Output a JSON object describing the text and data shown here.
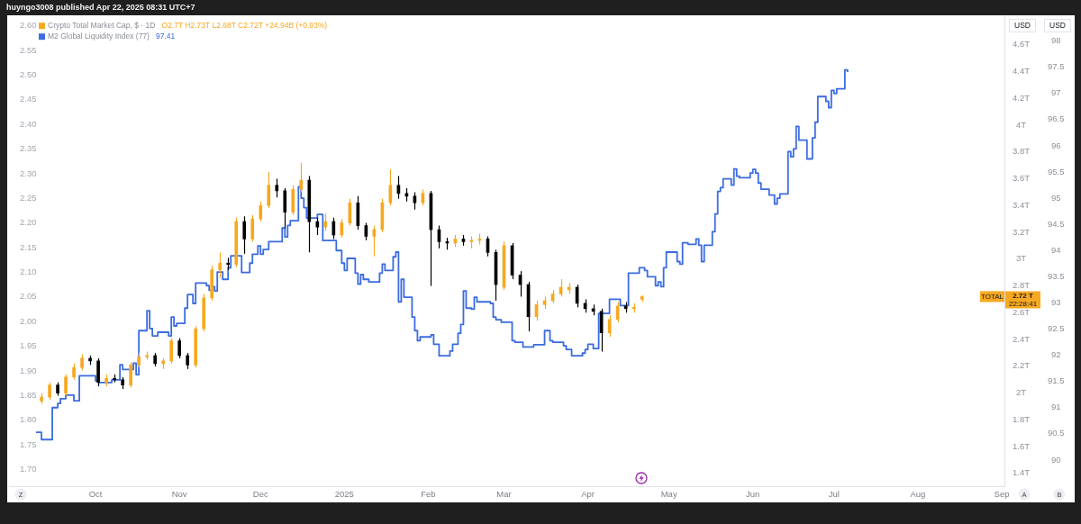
{
  "chart_data": {
    "type": "candlestick",
    "annotations": [
      "huyngo3008 published Apr 22, 2025 08:31 UTC+7",
      "O2.7T H2.73T L2.68T C2.72T +24.94B (+0.93%)",
      "97.41",
      "TOTAL",
      "2.72 T",
      "22:28:41",
      "Z",
      "A",
      "B"
    ],
    "legend": "top left",
    "series": [
      {
        "type": "candlestick",
        "name": "Crypto Total Market Cap, $ · 1D",
        "axis": "y2",
        "x": [
          "2024-09-11",
          "2024-09-14",
          "2024-09-17",
          "2024-09-20",
          "2024-09-23",
          "2024-09-26",
          "2024-09-29",
          "2024-10-02",
          "2024-10-05",
          "2024-10-08",
          "2024-10-11",
          "2024-10-14",
          "2024-10-17",
          "2024-10-20",
          "2024-10-23",
          "2024-10-26",
          "2024-10-29",
          "2024-11-01",
          "2024-11-04",
          "2024-11-07",
          "2024-11-10",
          "2024-11-13",
          "2024-11-16",
          "2024-11-19",
          "2024-11-22",
          "2024-11-25",
          "2024-11-28",
          "2024-12-01",
          "2024-12-04",
          "2024-12-07",
          "2024-12-10",
          "2024-12-13",
          "2024-12-16",
          "2024-12-19",
          "2024-12-22",
          "2024-12-25",
          "2024-12-28",
          "2024-12-31",
          "2025-01-03",
          "2025-01-06",
          "2025-01-09",
          "2025-01-12",
          "2025-01-15",
          "2025-01-18",
          "2025-01-21",
          "2025-01-24",
          "2025-01-27",
          "2025-01-30",
          "2025-02-02",
          "2025-02-05",
          "2025-02-08",
          "2025-02-11",
          "2025-02-14",
          "2025-02-17",
          "2025-02-20",
          "2025-02-23",
          "2025-02-26",
          "2025-03-01",
          "2025-03-04",
          "2025-03-07",
          "2025-03-10",
          "2025-03-13",
          "2025-03-16",
          "2025-03-19",
          "2025-03-22",
          "2025-03-25",
          "2025-03-28",
          "2025-03-31",
          "2025-04-03",
          "2025-04-06",
          "2025-04-09",
          "2025-04-12",
          "2025-04-15",
          "2025-04-18",
          "2025-04-21"
        ],
        "ohlc": [
          [
            1.94,
            2.0,
            1.92,
            1.97
          ],
          [
            1.97,
            2.08,
            1.95,
            2.06
          ],
          [
            2.06,
            2.08,
            1.98,
            2.0
          ],
          [
            2.0,
            2.14,
            1.98,
            2.12
          ],
          [
            2.12,
            2.22,
            2.1,
            2.19
          ],
          [
            2.19,
            2.29,
            2.17,
            2.26
          ],
          [
            2.26,
            2.28,
            2.21,
            2.24
          ],
          [
            2.24,
            2.26,
            2.05,
            2.08
          ],
          [
            2.08,
            2.14,
            2.05,
            2.11
          ],
          [
            2.11,
            2.14,
            2.08,
            2.1
          ],
          [
            2.1,
            2.12,
            2.03,
            2.06
          ],
          [
            2.06,
            2.23,
            2.04,
            2.21
          ],
          [
            2.21,
            2.3,
            2.19,
            2.27
          ],
          [
            2.27,
            2.31,
            2.25,
            2.28
          ],
          [
            2.28,
            2.3,
            2.2,
            2.22
          ],
          [
            2.22,
            2.26,
            2.18,
            2.24
          ],
          [
            2.24,
            2.41,
            2.22,
            2.39
          ],
          [
            2.39,
            2.41,
            2.26,
            2.28
          ],
          [
            2.28,
            2.3,
            2.18,
            2.21
          ],
          [
            2.21,
            2.5,
            2.19,
            2.48
          ],
          [
            2.48,
            2.74,
            2.46,
            2.71
          ],
          [
            2.71,
            2.95,
            2.69,
            2.92
          ],
          [
            2.92,
            3.05,
            2.86,
            2.97
          ],
          [
            2.97,
            3.01,
            2.92,
            2.96
          ],
          [
            2.96,
            3.31,
            2.94,
            3.28
          ],
          [
            3.28,
            3.32,
            3.04,
            3.15
          ],
          [
            3.15,
            3.33,
            3.13,
            3.3
          ],
          [
            3.3,
            3.43,
            3.28,
            3.4
          ],
          [
            3.4,
            3.65,
            3.38,
            3.55
          ],
          [
            3.55,
            3.6,
            3.46,
            3.51
          ],
          [
            3.51,
            3.53,
            3.23,
            3.35
          ],
          [
            3.35,
            3.55,
            3.33,
            3.52
          ],
          [
            3.52,
            3.72,
            3.5,
            3.59
          ],
          [
            3.59,
            3.62,
            3.05,
            3.28
          ],
          [
            3.28,
            3.31,
            3.18,
            3.24
          ],
          [
            3.24,
            3.34,
            3.21,
            3.28
          ],
          [
            3.28,
            3.31,
            3.15,
            3.18
          ],
          [
            3.18,
            3.3,
            3.16,
            3.27
          ],
          [
            3.27,
            3.45,
            3.25,
            3.42
          ],
          [
            3.42,
            3.47,
            3.22,
            3.25
          ],
          [
            3.25,
            3.27,
            3.14,
            3.17
          ],
          [
            3.17,
            3.25,
            3.02,
            3.22
          ],
          [
            3.22,
            3.45,
            3.2,
            3.42
          ],
          [
            3.42,
            3.67,
            3.4,
            3.55
          ],
          [
            3.55,
            3.62,
            3.45,
            3.49
          ],
          [
            3.49,
            3.53,
            3.43,
            3.47
          ],
          [
            3.47,
            3.5,
            3.37,
            3.42
          ],
          [
            3.42,
            3.52,
            3.4,
            3.49
          ],
          [
            3.49,
            3.51,
            2.8,
            3.22
          ],
          [
            3.22,
            3.25,
            3.08,
            3.13
          ],
          [
            3.13,
            3.16,
            3.07,
            3.12
          ],
          [
            3.12,
            3.18,
            3.09,
            3.15
          ],
          [
            3.15,
            3.18,
            3.1,
            3.13
          ],
          [
            3.13,
            3.17,
            3.08,
            3.14
          ],
          [
            3.14,
            3.19,
            3.11,
            3.15
          ],
          [
            3.15,
            3.17,
            3.02,
            3.05
          ],
          [
            3.05,
            3.07,
            2.69,
            2.81
          ],
          [
            2.79,
            3.13,
            2.77,
            3.1
          ],
          [
            3.1,
            3.12,
            2.85,
            2.88
          ],
          [
            2.88,
            2.91,
            2.72,
            2.81
          ],
          [
            2.81,
            2.83,
            2.46,
            2.57
          ],
          [
            2.57,
            2.69,
            2.54,
            2.66
          ],
          [
            2.66,
            2.72,
            2.63,
            2.69
          ],
          [
            2.69,
            2.77,
            2.67,
            2.74
          ],
          [
            2.74,
            2.85,
            2.72,
            2.79
          ],
          [
            2.77,
            2.82,
            2.74,
            2.79
          ],
          [
            2.79,
            2.81,
            2.64,
            2.67
          ],
          [
            2.67,
            2.7,
            2.6,
            2.63
          ],
          [
            2.63,
            2.66,
            2.58,
            2.61
          ],
          [
            2.61,
            2.63,
            2.31,
            2.45
          ],
          [
            2.45,
            2.58,
            2.42,
            2.55
          ],
          [
            2.55,
            2.68,
            2.53,
            2.65
          ],
          [
            2.65,
            2.68,
            2.6,
            2.63
          ],
          [
            2.63,
            2.67,
            2.6,
            2.64
          ],
          [
            2.7,
            2.73,
            2.68,
            2.72
          ]
        ],
        "colors": [
          "#f6a821",
          "#f6a821",
          "#000000",
          "#f6a821",
          "#f6a821",
          "#f6a821",
          "#000000",
          "#000000",
          "#f6a821",
          "#000000",
          "#000000",
          "#f6a821",
          "#f6a821",
          "#f6a821",
          "#000000",
          "#f6a821",
          "#f6a821",
          "#000000",
          "#000000",
          "#f6a821",
          "#f6a821",
          "#f6a821",
          "#f6a821",
          "#000000",
          "#f6a821",
          "#000000",
          "#f6a821",
          "#f6a821",
          "#f6a821",
          "#000000",
          "#000000",
          "#f6a821",
          "#f6a821",
          "#000000",
          "#000000",
          "#f6a821",
          "#000000",
          "#f6a821",
          "#f6a821",
          "#000000",
          "#000000",
          "#f6a821",
          "#f6a821",
          "#f6a821",
          "#000000",
          "#000000",
          "#000000",
          "#f6a821",
          "#000000",
          "#000000",
          "#000000",
          "#f6a821",
          "#000000",
          "#f6a821",
          "#f6a821",
          "#000000",
          "#000000",
          "#f6a821",
          "#000000",
          "#000000",
          "#000000",
          "#f6a821",
          "#f6a821",
          "#f6a821",
          "#f6a821",
          "#f6a821",
          "#000000",
          "#000000",
          "#000000",
          "#000000",
          "#f6a821",
          "#f6a821",
          "#000000",
          "#f6a821",
          "#f6a821"
        ]
      },
      {
        "type": "step",
        "name": "M2 Global Liquidity Index (77)",
        "axis": "y3",
        "color": "#3a6be0",
        "x": [
          "2024-09-09",
          "2024-09-11",
          "2024-09-15",
          "2024-09-17",
          "2024-09-18",
          "2024-09-20",
          "2024-09-23",
          "2024-09-25",
          "2024-10-01",
          "2024-10-02",
          "2024-10-07",
          "2024-10-10",
          "2024-10-11",
          "2024-10-15",
          "2024-10-16",
          "2024-10-17",
          "2024-10-20",
          "2024-10-21",
          "2024-10-22",
          "2024-10-24",
          "2024-10-28",
          "2024-10-29",
          "2024-10-30",
          "2024-10-31",
          "2024-11-03",
          "2024-11-04",
          "2024-11-06",
          "2024-11-07",
          "2024-11-11",
          "2024-11-12",
          "2024-11-13",
          "2024-11-14",
          "2024-11-15",
          "2024-11-17",
          "2024-11-19",
          "2024-11-20",
          "2024-11-24",
          "2024-11-27",
          "2024-11-28",
          "2024-11-30",
          "2024-12-01",
          "2024-12-02",
          "2024-12-04",
          "2024-12-09",
          "2024-12-10",
          "2024-12-11",
          "2024-12-12",
          "2024-12-15",
          "2024-12-16",
          "2024-12-17",
          "2024-12-18",
          "2024-12-22",
          "2024-12-24",
          "2024-12-29",
          "2024-12-31",
          "2025-01-01",
          "2025-01-02",
          "2025-01-05",
          "2025-01-06",
          "2025-01-07",
          "2025-01-08",
          "2025-01-10",
          "2025-01-14",
          "2025-01-15",
          "2025-01-16",
          "2025-01-19",
          "2025-01-20",
          "2025-01-21",
          "2025-01-22",
          "2025-01-23",
          "2025-01-26",
          "2025-01-27",
          "2025-01-28",
          "2025-01-29",
          "2025-02-02",
          "2025-02-03",
          "2025-02-05",
          "2025-02-09",
          "2025-02-10",
          "2025-02-12",
          "2025-02-13",
          "2025-02-14",
          "2025-02-15",
          "2025-02-17",
          "2025-02-18",
          "2025-02-19",
          "2025-02-24",
          "2025-02-25",
          "2025-02-26",
          "2025-02-28",
          "2025-03-04",
          "2025-03-05",
          "2025-03-08",
          "2025-03-12",
          "2025-03-16",
          "2025-03-18",
          "2025-03-19",
          "2025-03-23",
          "2025-03-24",
          "2025-03-26",
          "2025-03-30",
          "2025-03-31",
          "2025-04-01",
          "2025-04-03",
          "2025-04-05",
          "2025-04-09",
          "2025-04-13",
          "2025-04-16",
          "2025-04-20",
          "2025-04-22",
          "2025-04-23",
          "2025-04-26",
          "2025-04-27",
          "2025-04-28",
          "2025-04-29",
          "2025-04-30",
          "2025-05-04",
          "2025-05-05",
          "2025-05-06",
          "2025-05-08",
          "2025-05-11",
          "2025-05-12",
          "2025-05-13",
          "2025-05-14",
          "2025-05-17",
          "2025-05-18",
          "2025-05-19",
          "2025-05-20",
          "2025-05-21",
          "2025-05-24",
          "2025-05-25",
          "2025-05-26",
          "2025-05-27",
          "2025-05-31",
          "2025-06-01",
          "2025-06-02",
          "2025-06-03",
          "2025-06-04",
          "2025-06-07",
          "2025-06-09",
          "2025-06-10",
          "2025-06-11",
          "2025-06-14",
          "2025-06-15",
          "2025-06-16",
          "2025-06-17",
          "2025-06-18",
          "2025-06-21",
          "2025-06-23",
          "2025-06-24",
          "2025-06-25",
          "2025-06-28",
          "2025-06-29",
          "2025-06-30",
          "2025-07-01",
          "2025-07-02",
          "2025-07-05",
          "2025-07-06"
        ],
        "values": [
          90.53,
          90.39,
          91.0,
          91.08,
          91.17,
          91.24,
          91.13,
          91.61,
          91.51,
          91.48,
          91.53,
          91.82,
          91.73,
          91.85,
          91.63,
          92.47,
          92.85,
          92.51,
          92.37,
          92.44,
          92.37,
          92.73,
          92.56,
          92.61,
          92.9,
          93.16,
          92.99,
          93.38,
          93.33,
          93.24,
          93.31,
          93.23,
          93.59,
          93.45,
          93.67,
          93.9,
          93.58,
          93.76,
          93.93,
          94.09,
          93.93,
          94.02,
          94.17,
          94.43,
          94.26,
          94.48,
          94.57,
          95.22,
          95.0,
          94.82,
          94.62,
          94.69,
          94.19,
          94.0,
          93.76,
          93.62,
          93.85,
          93.57,
          93.36,
          93.54,
          93.45,
          93.4,
          93.57,
          93.74,
          93.62,
          93.88,
          93.97,
          93.02,
          93.45,
          93.11,
          92.73,
          92.47,
          92.28,
          92.35,
          92.39,
          92.21,
          91.99,
          92.08,
          92.21,
          92.42,
          92.59,
          93.23,
          92.9,
          92.88,
          93.11,
          93.02,
          92.99,
          92.73,
          92.68,
          92.63,
          92.28,
          92.25,
          92.16,
          92.2,
          92.47,
          92.28,
          92.25,
          92.18,
          92.11,
          91.99,
          92.04,
          92.11,
          92.21,
          92.13,
          92.8,
          93.07,
          92.95,
          93.57,
          93.67,
          93.62,
          93.5,
          93.33,
          93.4,
          93.31,
          93.67,
          93.97,
          93.79,
          93.74,
          94.15,
          94.12,
          94.22,
          94.1,
          93.79,
          94.1,
          94.36,
          94.7,
          95.13,
          95.2,
          95.37,
          95.25,
          95.56,
          95.42,
          95.39,
          95.48,
          95.55,
          95.48,
          95.29,
          95.17,
          95.06,
          94.89,
          95.0,
          95.08,
          95.89,
          95.79,
          95.94,
          96.37,
          96.11,
          95.75,
          96.15,
          96.45,
          96.94,
          96.85,
          96.73,
          97.06,
          97.0,
          97.09,
          97.45,
          97.41
        ]
      }
    ],
    "xlim": [
      "2024-08-30",
      "2025-09-02"
    ],
    "xticks": [
      {
        "value": "2024-10-01",
        "label": "Oct"
      },
      {
        "value": "2024-11-01",
        "label": "Nov"
      },
      {
        "value": "2024-12-01",
        "label": "Dec"
      },
      {
        "value": "2025-01-01",
        "label": "2025"
      },
      {
        "value": "2025-02-01",
        "label": "Feb"
      },
      {
        "value": "2025-03-01",
        "label": "Mar"
      },
      {
        "value": "2025-04-01",
        "label": "Apr"
      },
      {
        "value": "2025-05-01",
        "label": "May"
      },
      {
        "value": "2025-06-01",
        "label": "Jun"
      },
      {
        "value": "2025-07-01",
        "label": "Jul"
      },
      {
        "value": "2025-08-01",
        "label": "Aug"
      },
      {
        "value": "2025-09-01",
        "label": "Sep"
      }
    ],
    "ylim": [
      1.666,
      2.62
    ],
    "yticks": [
      {
        "value": 1.7,
        "label": "1.70"
      },
      1.75,
      {
        "value": 1.8,
        "label": "1.80"
      },
      1.85,
      {
        "value": 1.9,
        "label": "1.90"
      },
      1.95,
      {
        "value": 2,
        "label": "2.00"
      },
      2.05,
      {
        "value": 2.1,
        "label": "2.10"
      },
      2.15,
      {
        "value": 2.2,
        "label": "2.20"
      },
      2.25,
      {
        "value": 2.3,
        "label": "2.30"
      },
      2.35,
      {
        "value": 2.4,
        "label": "2.40"
      },
      2.45,
      {
        "value": 2.5,
        "label": "2.50"
      },
      2.55,
      {
        "value": 2.6,
        "label": "2.60"
      }
    ],
    "y2label": "USD",
    "y2lim": [
      1.305,
      4.815
    ],
    "y2ticks": [
      {
        "value": 1.4,
        "label": "1.4T"
      },
      {
        "value": 1.6,
        "label": "1.6T"
      },
      {
        "value": 1.8,
        "label": "1.8T"
      },
      {
        "value": 2,
        "label": "2T"
      },
      {
        "value": 2.2,
        "label": "2.2T"
      },
      {
        "value": 2.4,
        "label": "2.4T"
      },
      {
        "value": 2.6,
        "label": "2.6T"
      },
      {
        "value": 2.8,
        "label": "2.8T"
      },
      {
        "value": 3,
        "label": "3T"
      },
      {
        "value": 3.2,
        "label": "3.2T"
      },
      {
        "value": 3.4,
        "label": "3.4T"
      },
      {
        "value": 3.6,
        "label": "3.6T"
      },
      {
        "value": 3.8,
        "label": "3.8T"
      },
      {
        "value": 4,
        "label": "4T"
      },
      {
        "value": 4.2,
        "label": "4.2T"
      },
      {
        "value": 4.4,
        "label": "4.4T"
      },
      {
        "value": 4.6,
        "label": "4.6T"
      }
    ],
    "y3label": "USD",
    "y3lim": [
      89.5,
      98.48
    ],
    "y3ticks": [
      90,
      90.5,
      91,
      91.5,
      92,
      92.5,
      93,
      93.5,
      94,
      94.5,
      95,
      95.5,
      96,
      96.5,
      97,
      97.5,
      98
    ]
  }
}
